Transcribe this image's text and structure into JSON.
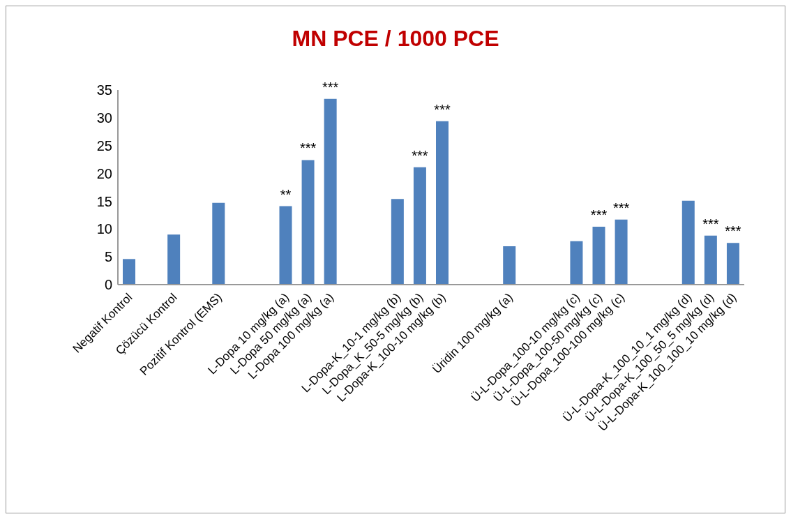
{
  "chart_data": {
    "type": "bar",
    "title": "MN PCE / 1000 PCE",
    "categories": [
      "Negatif Kontrol",
      null,
      "Çözücü Kontrol",
      null,
      "Pozitif Kontrol (EMS)",
      null,
      null,
      "L-Dopa 10 mg/kg (a)",
      "L-Dopa 50 mg/kg (a)",
      "L-Dopa 100 mg/kg (a)",
      null,
      null,
      "L-Dopa-K_10-1 mg/kg (b)",
      "L-Dopa_K_50-5 mg/kg (b)",
      "L-Dopa-K_100-10 mg/kg (b)",
      null,
      null,
      "Üridin 100 mg/kg (a)",
      null,
      null,
      "Ü-L-Dopa_100-10 mg/kg (c)",
      "Ü-L-Dopa_100-50 mg/kg (c)",
      "Ü-L-Dopa_100-100 mg/kg (c)",
      null,
      null,
      "Ü-L-Dopa-K_100_10_1 mg/kg (d)",
      "Ü-L-Dopa-K_100_50_5 mg/kg (d)",
      "Ü-L-Dopa-K_100_100_10 mg/kg (d)"
    ],
    "values": [
      4.6,
      null,
      9.0,
      null,
      14.7,
      null,
      null,
      14.1,
      22.4,
      33.4,
      null,
      null,
      15.4,
      21.1,
      29.4,
      null,
      null,
      6.9,
      null,
      null,
      7.8,
      10.4,
      11.7,
      null,
      null,
      15.1,
      8.8,
      7.5
    ],
    "color": "#4f81bd",
    "ylim": [
      0,
      35
    ],
    "yticks": [
      0,
      5,
      10,
      15,
      20,
      25,
      30,
      35
    ],
    "grid": false,
    "annotations": [
      {
        "text": "**",
        "x": "L-Dopa 10 mg/kg (a)",
        "y": 14.1
      },
      {
        "text": "***",
        "x": "L-Dopa 50 mg/kg (a)",
        "y": 22.4
      },
      {
        "text": "***",
        "x": "L-Dopa 100 mg/kg (a)",
        "y": 33.4
      },
      {
        "text": "***",
        "x": "L-Dopa_K_50-5 mg/kg (b)",
        "y": 21.1
      },
      {
        "text": "***",
        "x": "L-Dopa-K_100-10 mg/kg (b)",
        "y": 29.4
      },
      {
        "text": "***",
        "x": "Ü-L-Dopa_100-50 mg/kg (c)",
        "y": 10.4
      },
      {
        "text": "***",
        "x": "Ü-L-Dopa_100-100 mg/kg (c)",
        "y": 11.7
      },
      {
        "text": "***",
        "x": "Ü-L-Dopa-K_100_50_5 mg/kg (d)",
        "y": 8.8
      },
      {
        "text": "***",
        "x": "Ü-L-Dopa-K_100_100_10 mg/kg (d)",
        "y": 7.5
      }
    ]
  }
}
